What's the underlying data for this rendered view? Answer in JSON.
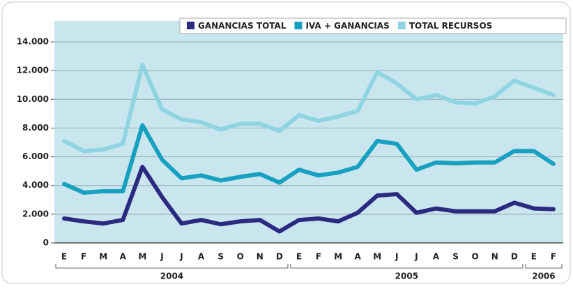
{
  "chart_data": {
    "type": "line",
    "categories": [
      "E",
      "F",
      "M",
      "A",
      "M",
      "J",
      "J",
      "A",
      "S",
      "O",
      "N",
      "D",
      "E",
      "F",
      "M",
      "A",
      "M",
      "J",
      "J",
      "A",
      "S",
      "O",
      "N",
      "D",
      "E",
      "F"
    ],
    "groups": [
      {
        "label": "2004",
        "span": 12
      },
      {
        "label": "2005",
        "span": 12
      },
      {
        "label": "2006",
        "span": 2
      }
    ],
    "series": [
      {
        "name": "GANANCIAS TOTAL",
        "color": "#2b2a80",
        "values": [
          1700,
          1500,
          1350,
          1600,
          5300,
          3200,
          1350,
          1600,
          1300,
          1500,
          1600,
          800,
          1600,
          1700,
          1500,
          2100,
          3300,
          3400,
          2100,
          2400,
          2200,
          2200,
          2200,
          2800,
          2400,
          2350
        ]
      },
      {
        "name": "IVA + GANANCIAS",
        "color": "#17a0bf",
        "values": [
          4100,
          3500,
          3600,
          3600,
          8200,
          5800,
          4500,
          4700,
          4350,
          4600,
          4800,
          4200,
          5100,
          4700,
          4900,
          5300,
          7100,
          6900,
          5100,
          5600,
          5550,
          5600,
          5600,
          6400,
          6400,
          5500
        ]
      },
      {
        "name": "TOTAL RECURSOS",
        "color": "#8fd4e2",
        "values": [
          7100,
          6400,
          6500,
          6900,
          12400,
          9300,
          8600,
          8400,
          7900,
          8300,
          8300,
          7800,
          8900,
          8500,
          8800,
          9200,
          11900,
          11100,
          10000,
          10300,
          9800,
          9700,
          10200,
          11300,
          10800,
          10300
        ]
      }
    ],
    "ylim": [
      0,
      14000
    ],
    "yticks": [
      0,
      {
        "value": 2000,
        "label": "2.000"
      },
      {
        "value": 4000,
        "label": "4.000"
      },
      {
        "value": 6000,
        "label": "6.000"
      },
      {
        "value": 8000,
        "label": "8.000"
      },
      {
        "value": 10000,
        "label": "10.000"
      },
      {
        "value": 12000,
        "label": "12.000"
      },
      {
        "value": 14000,
        "label": "14.000"
      }
    ],
    "grid": true,
    "legend": "top-right"
  }
}
